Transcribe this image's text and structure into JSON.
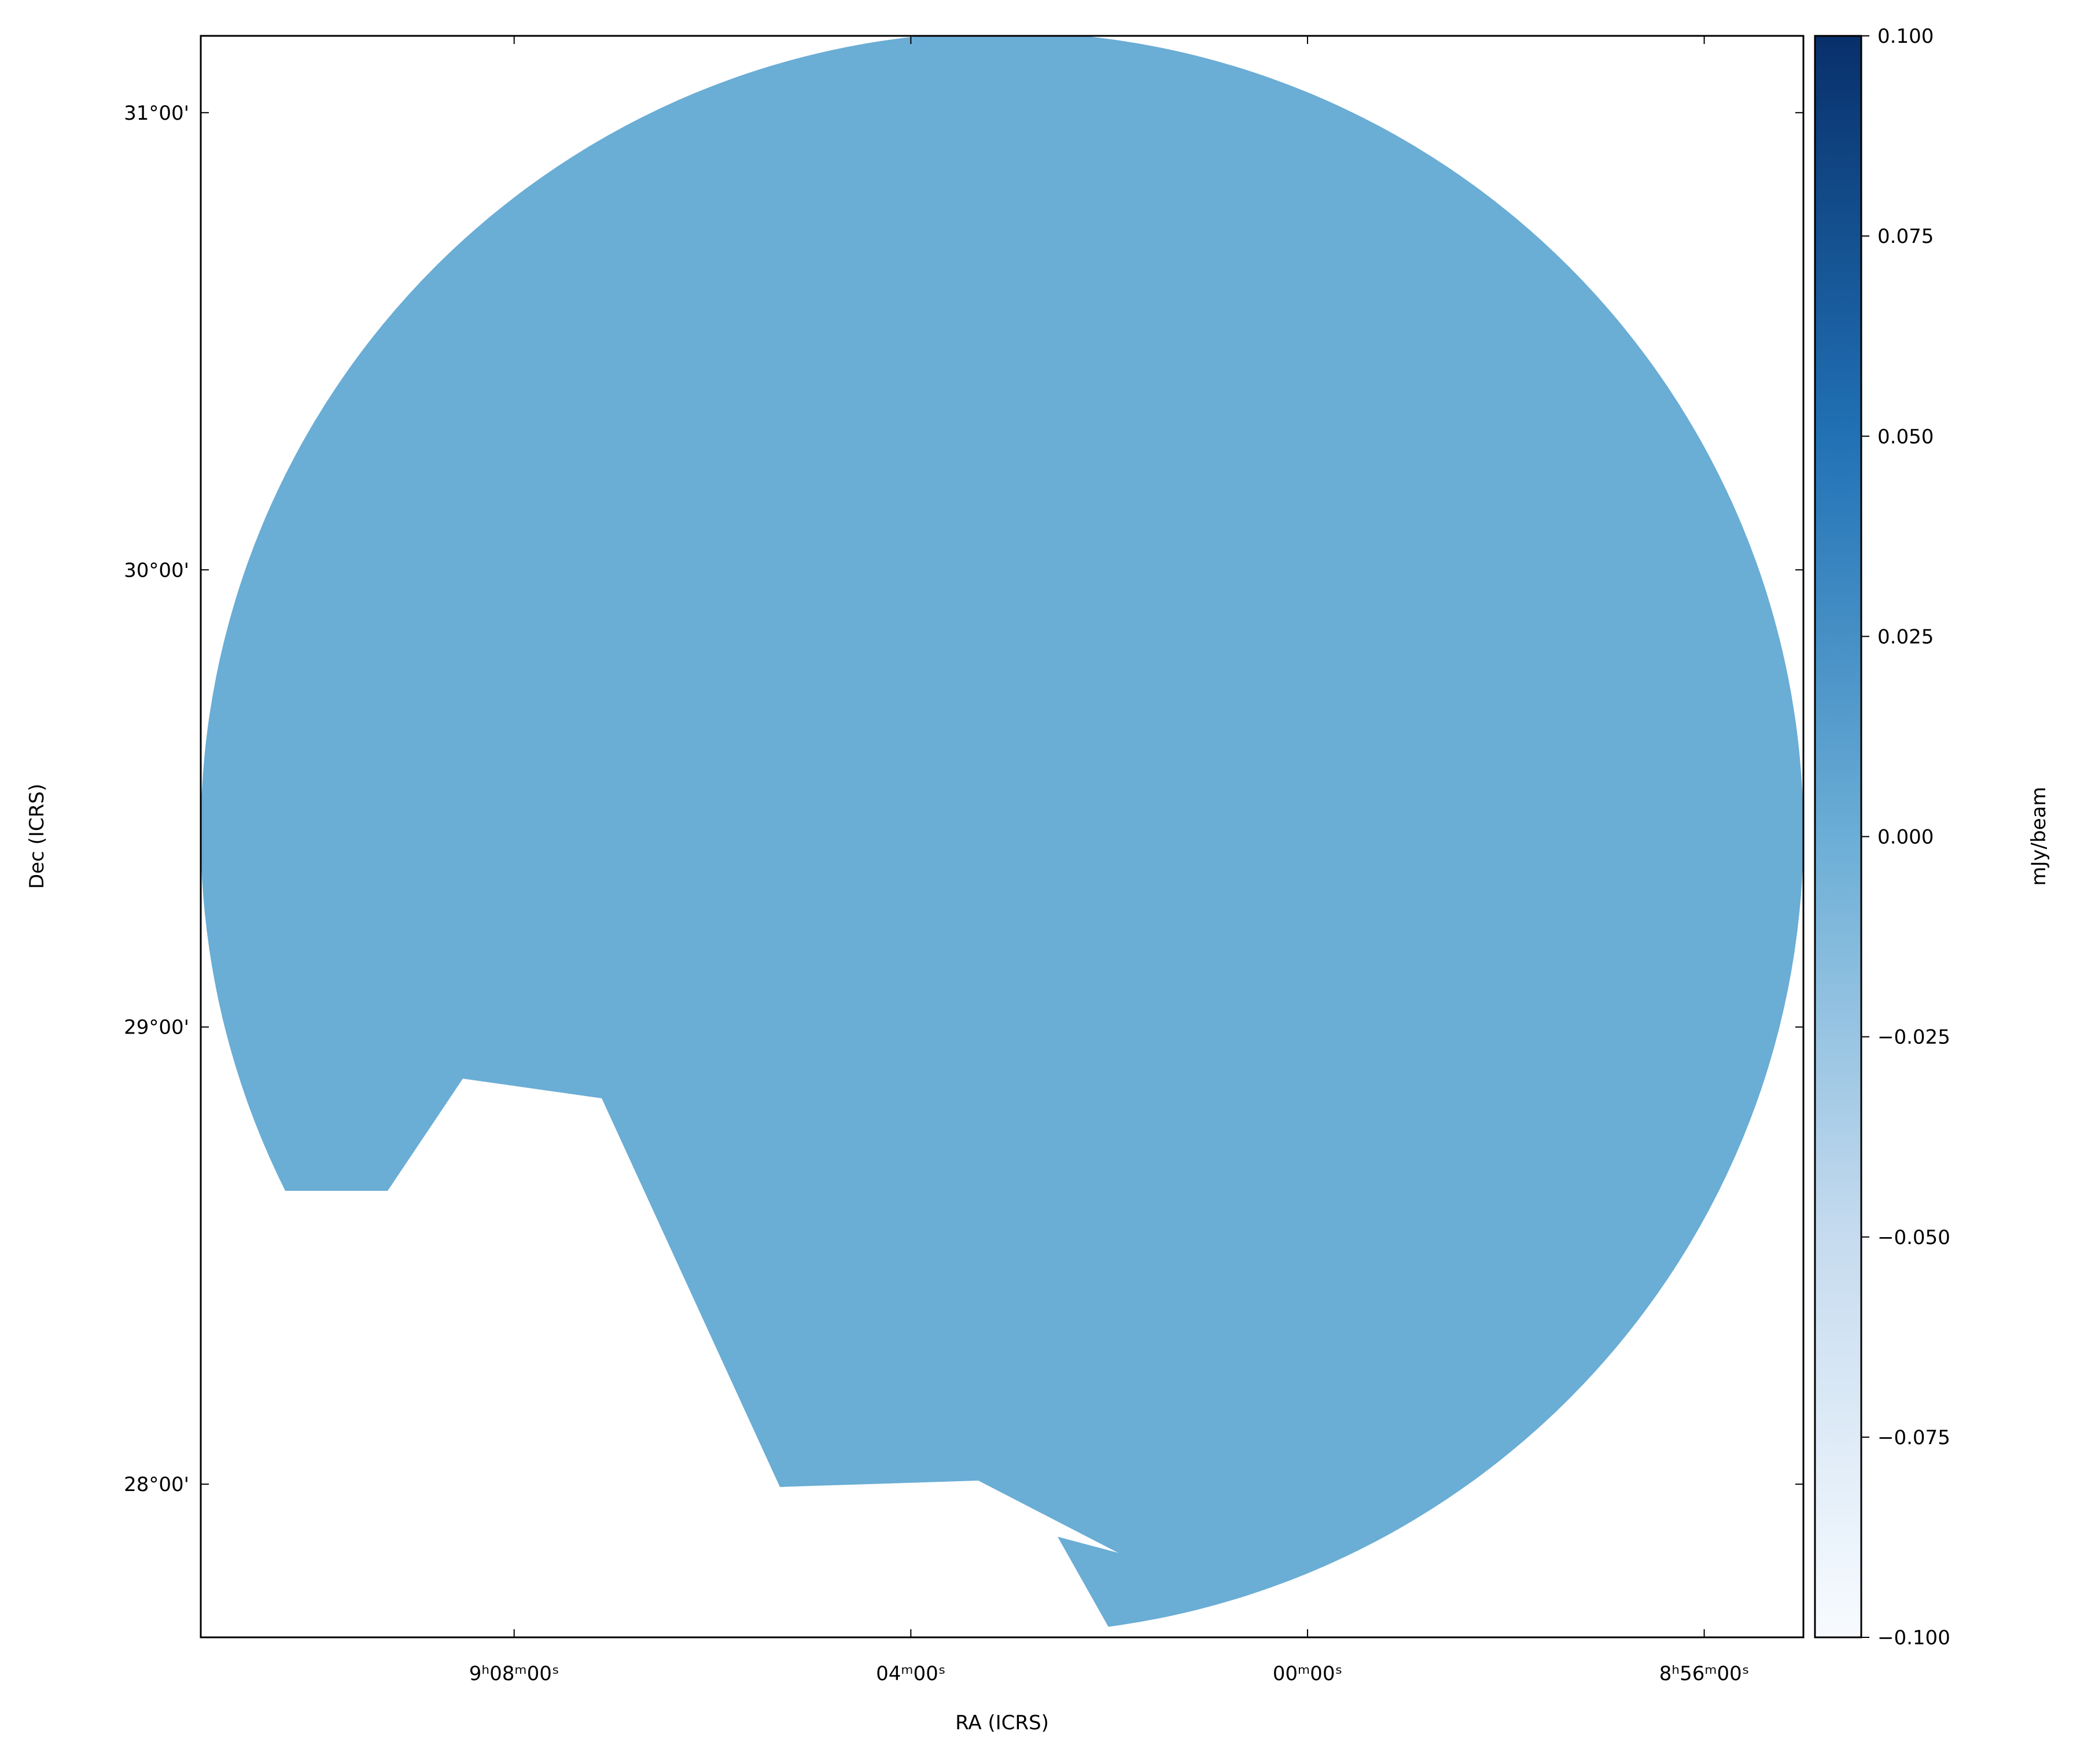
{
  "chart_data": {
    "type": "image",
    "xlabel": "RA (ICRS)",
    "ylabel": "Dec (ICRS)",
    "xlim": [
      137.79,
      133.75
    ],
    "ylim": [
      27.665,
      31.168
    ],
    "xticks": [
      {
        "value": 137,
        "label": "9ʰ08ᵐ00ˢ"
      },
      {
        "value": 136,
        "label": "04ᵐ00ˢ"
      },
      {
        "value": 135,
        "label": "00ᵐ00ˢ"
      },
      {
        "value": 134,
        "label": "8ʰ56ᵐ00ˢ"
      }
    ],
    "yticks": [
      {
        "value": 28,
        "label": "28°00'"
      },
      {
        "value": 29,
        "label": "29°00'"
      },
      {
        "value": 30,
        "label": "30°00'"
      },
      {
        "value": 31,
        "label": "31°00'"
      }
    ],
    "colorbar": {
      "label": "mJy/beam",
      "clim": [
        -0.1,
        0.1
      ],
      "ticks": [
        {
          "value": -0.1,
          "label": "−0.100"
        },
        {
          "value": -0.075,
          "label": "−0.075"
        },
        {
          "value": -0.05,
          "label": "−0.050"
        },
        {
          "value": -0.025,
          "label": "−0.025"
        },
        {
          "value": 0,
          "label": "0.000"
        },
        {
          "value": 0.025,
          "label": "0.025"
        },
        {
          "value": 0.05,
          "label": "0.050"
        },
        {
          "value": 0.075,
          "label": "0.075"
        },
        {
          "value": 0.1,
          "label": "0.100"
        }
      ]
    }
  }
}
